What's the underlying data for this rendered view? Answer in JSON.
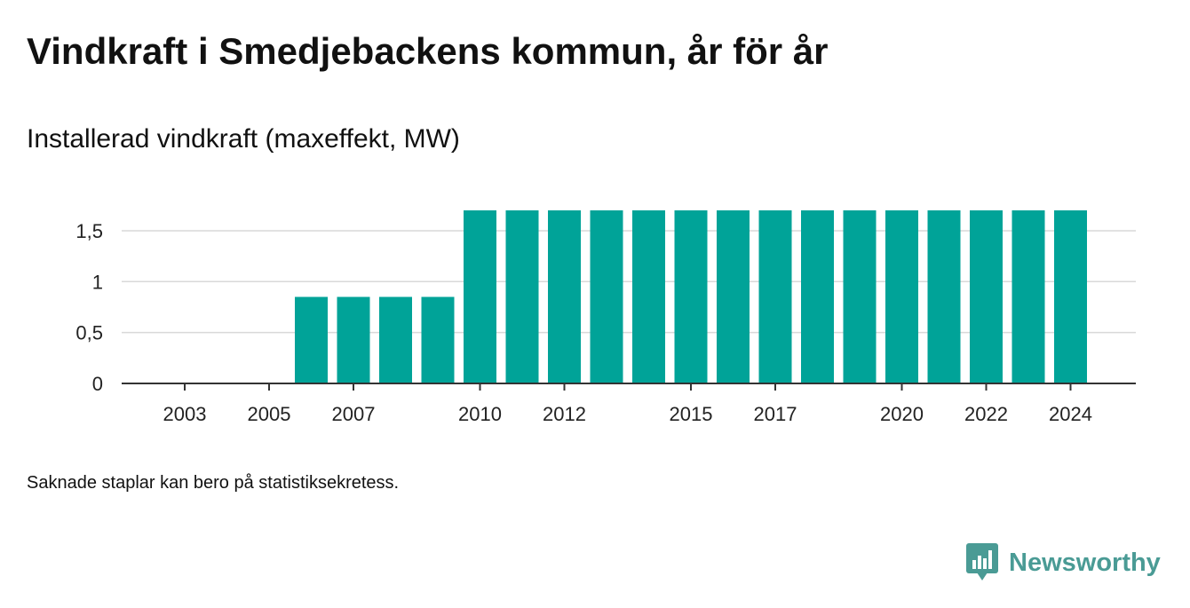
{
  "title": "Vindkraft i Smedjebackens kommun, år för år",
  "subtitle": "Installerad vindkraft (maxeffekt, MW)",
  "footnote": "Saknade staplar kan bero på statistiksekretess.",
  "brand": {
    "name": "Newsworthy",
    "color": "#4a9b95",
    "logo_icon": "newsworthy-logo-icon"
  },
  "chart_data": {
    "type": "bar",
    "categories": [
      "2003",
      "2004",
      "2005",
      "2006",
      "2007",
      "2008",
      "2009",
      "2010",
      "2011",
      "2012",
      "2013",
      "2014",
      "2015",
      "2016",
      "2017",
      "2018",
      "2019",
      "2020",
      "2021",
      "2022",
      "2023",
      "2024"
    ],
    "values": [
      0,
      0,
      0,
      0.85,
      0.85,
      0.85,
      0.85,
      1.7,
      1.7,
      1.7,
      1.7,
      1.7,
      1.7,
      1.7,
      1.7,
      1.7,
      1.7,
      1.7,
      1.7,
      1.7,
      1.7,
      1.7
    ],
    "x_tick_labels": [
      "2003",
      "2005",
      "2007",
      "2010",
      "2012",
      "2015",
      "2017",
      "2020",
      "2022",
      "2024"
    ],
    "y_ticks": [
      0,
      0.5,
      1,
      1.5
    ],
    "y_tick_labels": [
      "0",
      "0,5",
      "1",
      "1,5"
    ],
    "ylim": [
      0,
      1.7
    ],
    "bar_color": "#00a398",
    "gridlines": true,
    "xlabel": "",
    "ylabel": ""
  }
}
